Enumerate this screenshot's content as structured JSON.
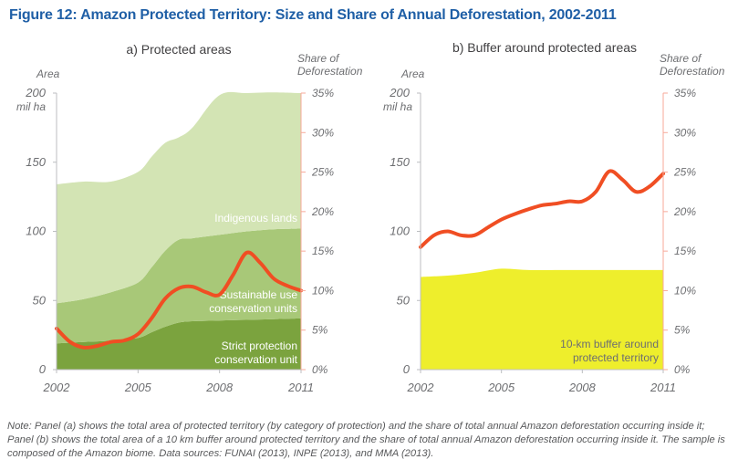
{
  "figure_title": "Figure 12: Amazon Protected Territory: Size and Share of Annual Deforestation, 2002-2011",
  "note": "Note: Panel (a) shows the total area of protected territory (by category of protection) and the share of total annual Amazon deforestation occurring inside it; Panel (b) shows the total area of a 10 km buffer around protected territory and the share of total annual Amazon deforestation occurring inside it. The sample is composed of the Amazon biome. Data sources: FUNAI (2013), INPE (2013), and MMA (2013).",
  "colors": {
    "strict": "#7ba33e",
    "sustainable": "#a8c878",
    "indigenous": "#d3e4b4",
    "buffer": "#eeee2c",
    "share_line": "#f04e23",
    "axis": "#bcbec0",
    "right_axis": "#f7a99a",
    "title": "#1f5fa6"
  },
  "chart_data": [
    {
      "type": "area",
      "title": "a) Protected areas",
      "left_axis_title": [
        "Area"
      ],
      "left_unit": [
        "mil ha"
      ],
      "right_axis_title": [
        "Share of",
        "Deforestation"
      ],
      "x_ticks": [
        "2002",
        "2005",
        "2008",
        "2011"
      ],
      "xlim": [
        2002,
        2011
      ],
      "y_left": {
        "ylim": [
          0,
          200
        ],
        "ticks": [
          "0",
          "50",
          "100",
          "150",
          "200"
        ]
      },
      "y_right": {
        "ylim": [
          0,
          35
        ],
        "ticks": [
          "0%",
          "5%",
          "10%",
          "15%",
          "20%",
          "25%",
          "30%",
          "35%"
        ]
      },
      "stack_series": [
        {
          "name": "Strict protection conservation unit",
          "label_lines": [
            "Strict protection",
            "conservation unit"
          ],
          "x": [
            2002,
            2003,
            2004,
            2005,
            2005.5,
            2006,
            2006.5,
            2007,
            2008,
            2009,
            2010,
            2011
          ],
          "values": [
            19,
            20,
            21,
            23,
            27,
            31,
            34,
            35,
            35.5,
            36,
            36.5,
            37
          ]
        },
        {
          "name": "Sustainable use conservation units",
          "label_lines": [
            "Sustainable use",
            "conservation units"
          ],
          "x": [
            2002,
            2003,
            2004,
            2005,
            2005.5,
            2006,
            2006.5,
            2007,
            2008,
            2009,
            2010,
            2011
          ],
          "values": [
            29,
            31,
            35,
            40,
            47,
            55,
            60,
            60,
            62,
            64,
            65,
            65
          ]
        },
        {
          "name": "Indigenous lands",
          "label_lines": [
            "Indigenous lands"
          ],
          "x": [
            2002,
            2003,
            2004,
            2005,
            2005.5,
            2006,
            2006.5,
            2007,
            2008,
            2009,
            2010,
            2011
          ],
          "values": [
            86,
            85,
            80,
            80,
            80,
            78,
            74,
            80,
            101,
            100,
            99,
            98
          ]
        }
      ],
      "line_series": {
        "name": "Share of Deforestation",
        "x": [
          2002,
          2002.5,
          2003,
          2003.5,
          2004,
          2004.5,
          2005,
          2005.5,
          2006,
          2006.5,
          2007,
          2007.5,
          2008,
          2008.5,
          2009,
          2009.5,
          2010,
          2010.5,
          2011
        ],
        "values": [
          5.2,
          3.5,
          2.8,
          3.0,
          3.5,
          3.7,
          4.5,
          6.5,
          9.0,
          10.3,
          10.5,
          9.8,
          9.5,
          12.0,
          14.8,
          13.5,
          11.5,
          10.6,
          10.0
        ]
      }
    },
    {
      "type": "area",
      "title": "b) Buffer around protected areas",
      "left_axis_title": [
        "Area"
      ],
      "left_unit": [
        "mil ha"
      ],
      "right_axis_title": [
        "Share of",
        "Deforestation"
      ],
      "x_ticks": [
        "2002",
        "2005",
        "2008",
        "2011"
      ],
      "xlim": [
        2002,
        2011
      ],
      "y_left": {
        "ylim": [
          0,
          200
        ],
        "ticks": [
          "0",
          "50",
          "100",
          "150",
          "200"
        ]
      },
      "y_right": {
        "ylim": [
          0,
          35
        ],
        "ticks": [
          "0%",
          "5%",
          "10%",
          "15%",
          "20%",
          "25%",
          "30%",
          "35%"
        ]
      },
      "stack_series": [
        {
          "name": "10-km buffer around protected territory",
          "label_lines": [
            "10-km buffer around",
            "protected territory"
          ],
          "x": [
            2002,
            2003,
            2004,
            2005,
            2006,
            2007,
            2008,
            2009,
            2010,
            2011
          ],
          "values": [
            67,
            68,
            70,
            73,
            72,
            72,
            72,
            72,
            72,
            72
          ]
        }
      ],
      "line_series": {
        "name": "Share of Deforestation",
        "x": [
          2002,
          2002.5,
          2003,
          2003.5,
          2004,
          2004.5,
          2005,
          2005.5,
          2006,
          2006.5,
          2007,
          2007.5,
          2008,
          2008.5,
          2009,
          2009.5,
          2010,
          2010.5,
          2011
        ],
        "values": [
          15.5,
          17.0,
          17.5,
          17.0,
          17.0,
          18.0,
          19.0,
          19.7,
          20.3,
          20.8,
          21.0,
          21.3,
          21.3,
          22.5,
          25.1,
          24.0,
          22.5,
          23.2,
          24.8
        ]
      }
    }
  ]
}
